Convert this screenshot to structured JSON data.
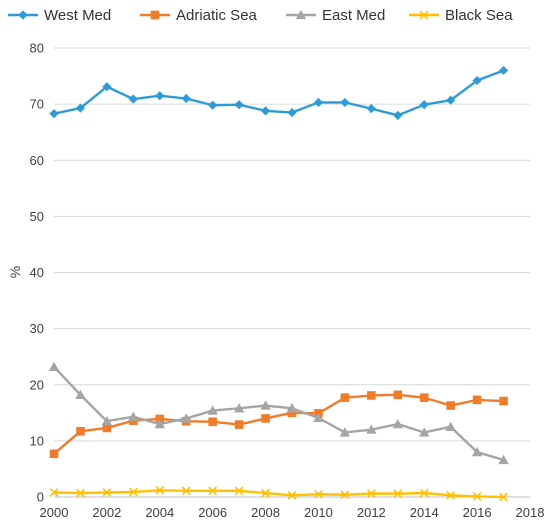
{
  "chart_data": {
    "type": "line",
    "title": "",
    "xlabel": "",
    "ylabel": "%",
    "xlim": [
      2000,
      2018
    ],
    "ylim": [
      0,
      80
    ],
    "xticks": [
      2000,
      2002,
      2004,
      2006,
      2008,
      2010,
      2012,
      2014,
      2016,
      2018
    ],
    "yticks": [
      0,
      10,
      20,
      30,
      40,
      50,
      60,
      70,
      80
    ],
    "grid": "horizontal",
    "legend_position": "top",
    "x": [
      2000,
      2001,
      2002,
      2003,
      2004,
      2005,
      2006,
      2007,
      2008,
      2009,
      2010,
      2011,
      2012,
      2013,
      2014,
      2015,
      2016,
      2017
    ],
    "series": [
      {
        "name": "West Med",
        "color": "#2E9BD6",
        "marker": "diamond",
        "values": [
          68.3,
          69.3,
          73.1,
          70.9,
          71.5,
          71.0,
          69.8,
          69.9,
          68.8,
          68.5,
          70.3,
          70.3,
          69.2,
          68.0,
          69.9,
          70.7,
          74.2,
          76.0
        ]
      },
      {
        "name": "Adriatic Sea",
        "color": "#F07C2A",
        "marker": "square",
        "values": [
          7.7,
          11.7,
          12.3,
          13.6,
          13.9,
          13.5,
          13.4,
          12.9,
          14.0,
          15.0,
          14.9,
          17.7,
          18.1,
          18.2,
          17.7,
          16.3,
          17.3,
          17.1
        ]
      },
      {
        "name": "East Med",
        "color": "#A5A5A5",
        "marker": "triangle",
        "values": [
          23.2,
          18.2,
          13.5,
          14.3,
          13.0,
          14.0,
          15.4,
          15.8,
          16.3,
          15.8,
          14.1,
          11.5,
          12.0,
          13.0,
          11.5,
          12.5,
          8.0,
          6.6
        ]
      },
      {
        "name": "Black Sea",
        "color": "#FFC000",
        "marker": "x",
        "values": [
          0.8,
          0.7,
          0.8,
          0.9,
          1.2,
          1.1,
          1.1,
          1.1,
          0.7,
          0.3,
          0.5,
          0.4,
          0.6,
          0.6,
          0.7,
          0.3,
          0.1,
          0.0
        ]
      }
    ]
  }
}
